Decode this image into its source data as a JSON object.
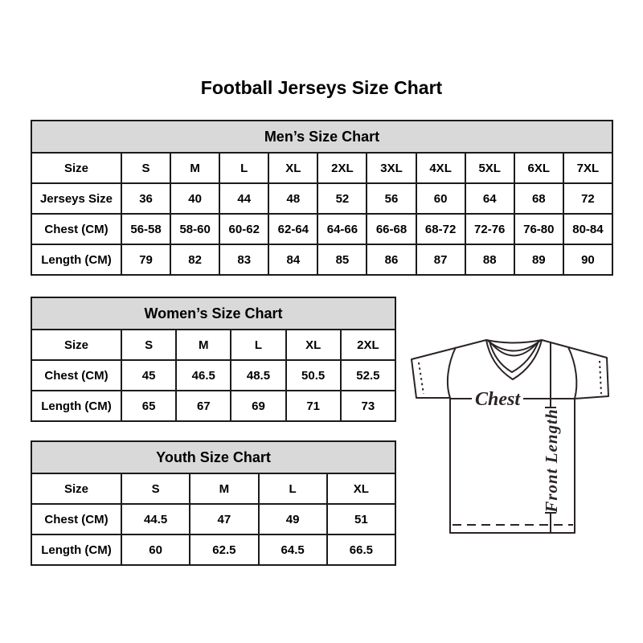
{
  "page": {
    "title": "Football Jerseys Size Chart"
  },
  "tables": {
    "men": {
      "title": "Men’s Size Chart",
      "rows": [
        {
          "label": "Size",
          "values": [
            "S",
            "M",
            "L",
            "XL",
            "2XL",
            "3XL",
            "4XL",
            "5XL",
            "6XL",
            "7XL"
          ]
        },
        {
          "label": "Jerseys Size",
          "values": [
            "36",
            "40",
            "44",
            "48",
            "52",
            "56",
            "60",
            "64",
            "68",
            "72"
          ]
        },
        {
          "label": "Chest (CM)",
          "values": [
            "56-58",
            "58-60",
            "60-62",
            "62-64",
            "64-66",
            "66-68",
            "68-72",
            "72-76",
            "76-80",
            "80-84"
          ]
        },
        {
          "label": "Length (CM)",
          "values": [
            "79",
            "82",
            "83",
            "84",
            "85",
            "86",
            "87",
            "88",
            "89",
            "90"
          ]
        }
      ]
    },
    "women": {
      "title": "Women’s Size Chart",
      "rows": [
        {
          "label": "Size",
          "values": [
            "S",
            "M",
            "L",
            "XL",
            "2XL"
          ]
        },
        {
          "label": "Chest (CM)",
          "values": [
            "45",
            "46.5",
            "48.5",
            "50.5",
            "52.5"
          ]
        },
        {
          "label": "Length (CM)",
          "values": [
            "65",
            "67",
            "69",
            "71",
            "73"
          ]
        }
      ]
    },
    "youth": {
      "title": "Youth Size Chart",
      "rows": [
        {
          "label": "Size",
          "values": [
            "S",
            "M",
            "L",
            "XL"
          ]
        },
        {
          "label": "Chest (CM)",
          "values": [
            "44.5",
            "47",
            "49",
            "51"
          ]
        },
        {
          "label": "Length (CM)",
          "values": [
            "60",
            "62.5",
            "64.5",
            "66.5"
          ]
        }
      ]
    }
  },
  "diagram": {
    "chest_label": "Chest",
    "front_length_label": "Front Length"
  },
  "colors": {
    "header_bg": "#d9d9d9",
    "table_border": "#1b1b1b",
    "text": "#000000",
    "diagram_stroke": "#2b2325",
    "background": "#ffffff"
  }
}
